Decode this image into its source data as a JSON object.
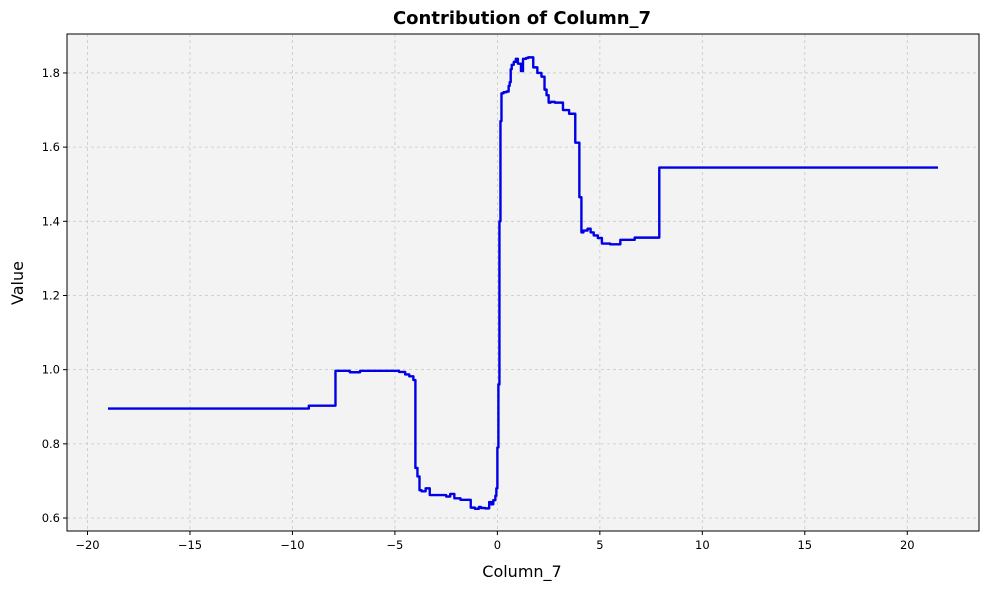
{
  "chart_data": {
    "type": "line",
    "title": "Contribution of Column_7",
    "xlabel": "Column_7",
    "ylabel": "Value",
    "xlim": [
      -21,
      23.5
    ],
    "ylim": [
      0.565,
      1.905
    ],
    "xticks": [
      -20,
      -15,
      -10,
      -5,
      0,
      5,
      10,
      15,
      20
    ],
    "yticks": [
      0.6,
      0.8,
      1.0,
      1.2,
      1.4,
      1.6,
      1.8
    ],
    "xtick_labels": [
      "−20",
      "−15",
      "−10",
      "−5",
      "0",
      "5",
      "10",
      "15",
      "20"
    ],
    "ytick_labels": [
      "0.6",
      "0.8",
      "1.0",
      "1.2",
      "1.4",
      "1.6",
      "1.8"
    ],
    "grid": true,
    "step": "post",
    "colors": {
      "line": "#0000e6",
      "plot_bg": "#f3f3f3",
      "grid": "#c8c8c8"
    },
    "series": [
      {
        "x": [
          -19.0,
          -9.2,
          -7.9,
          -7.2,
          -6.7,
          -4.8,
          -4.5,
          -4.3,
          -4.1,
          -4.0,
          -3.9,
          -3.8,
          -3.7,
          -3.5,
          -3.3,
          -3.1,
          -2.5,
          -2.3,
          -2.1,
          -1.8,
          -1.3,
          -1.1,
          -0.9,
          -0.8,
          -0.6,
          -0.4,
          -0.3,
          -0.2,
          -0.1,
          -0.05,
          0.0,
          0.05,
          0.1,
          0.15,
          0.2,
          0.3,
          0.45,
          0.55,
          0.6,
          0.65,
          0.7,
          0.8,
          0.9,
          1.0,
          1.15,
          1.25,
          1.4,
          1.5,
          1.75,
          1.95,
          2.15,
          2.3,
          2.4,
          2.5,
          2.6,
          2.8,
          3.2,
          3.5,
          3.8,
          4.0,
          4.1,
          4.2,
          4.4,
          4.55,
          4.7,
          4.9,
          5.1,
          5.5,
          6.0,
          6.7,
          7.9,
          21.5
        ],
        "y": [
          0.895,
          0.903,
          0.997,
          0.993,
          0.997,
          0.994,
          0.987,
          0.982,
          0.972,
          0.735,
          0.712,
          0.675,
          0.672,
          0.68,
          0.662,
          0.662,
          0.658,
          0.665,
          0.653,
          0.649,
          0.628,
          0.625,
          0.63,
          0.627,
          0.626,
          0.643,
          0.637,
          0.648,
          0.66,
          0.68,
          0.79,
          0.96,
          1.4,
          1.67,
          1.745,
          1.748,
          1.75,
          1.765,
          1.775,
          1.81,
          1.822,
          1.83,
          1.838,
          1.825,
          1.805,
          1.838,
          1.84,
          1.842,
          1.815,
          1.8,
          1.79,
          1.755,
          1.74,
          1.72,
          1.722,
          1.72,
          1.7,
          1.69,
          1.612,
          1.465,
          1.37,
          1.375,
          1.38,
          1.37,
          1.362,
          1.355,
          1.34,
          1.338,
          1.35,
          1.356,
          1.545,
          1.545
        ]
      }
    ]
  }
}
